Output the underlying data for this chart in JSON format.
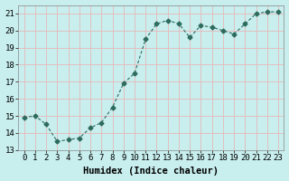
{
  "x": [
    0,
    1,
    2,
    3,
    4,
    5,
    6,
    7,
    8,
    9,
    10,
    11,
    12,
    13,
    14,
    15,
    16,
    17,
    18,
    19,
    20,
    21,
    22,
    23
  ],
  "y": [
    14.9,
    15.0,
    14.5,
    13.5,
    13.6,
    13.7,
    14.3,
    14.6,
    15.5,
    16.9,
    17.5,
    19.5,
    20.4,
    20.6,
    20.4,
    19.6,
    20.3,
    20.2,
    20.0,
    19.8,
    20.4,
    21.0,
    21.1,
    21.1
  ],
  "line_color": "#2d6b5e",
  "marker": "D",
  "marker_size": 2.5,
  "background_color": "#c8eeee",
  "grid_color": "#e8b8b8",
  "xlabel": "Humidex (Indice chaleur)",
  "xlabel_fontsize": 7.5,
  "tick_fontsize": 6.5,
  "xlim": [
    -0.5,
    23.5
  ],
  "ylim": [
    13,
    21.5
  ],
  "yticks": [
    13,
    14,
    15,
    16,
    17,
    18,
    19,
    20,
    21
  ],
  "xticks": [
    0,
    1,
    2,
    3,
    4,
    5,
    6,
    7,
    8,
    9,
    10,
    11,
    12,
    13,
    14,
    15,
    16,
    17,
    18,
    19,
    20,
    21,
    22,
    23
  ]
}
